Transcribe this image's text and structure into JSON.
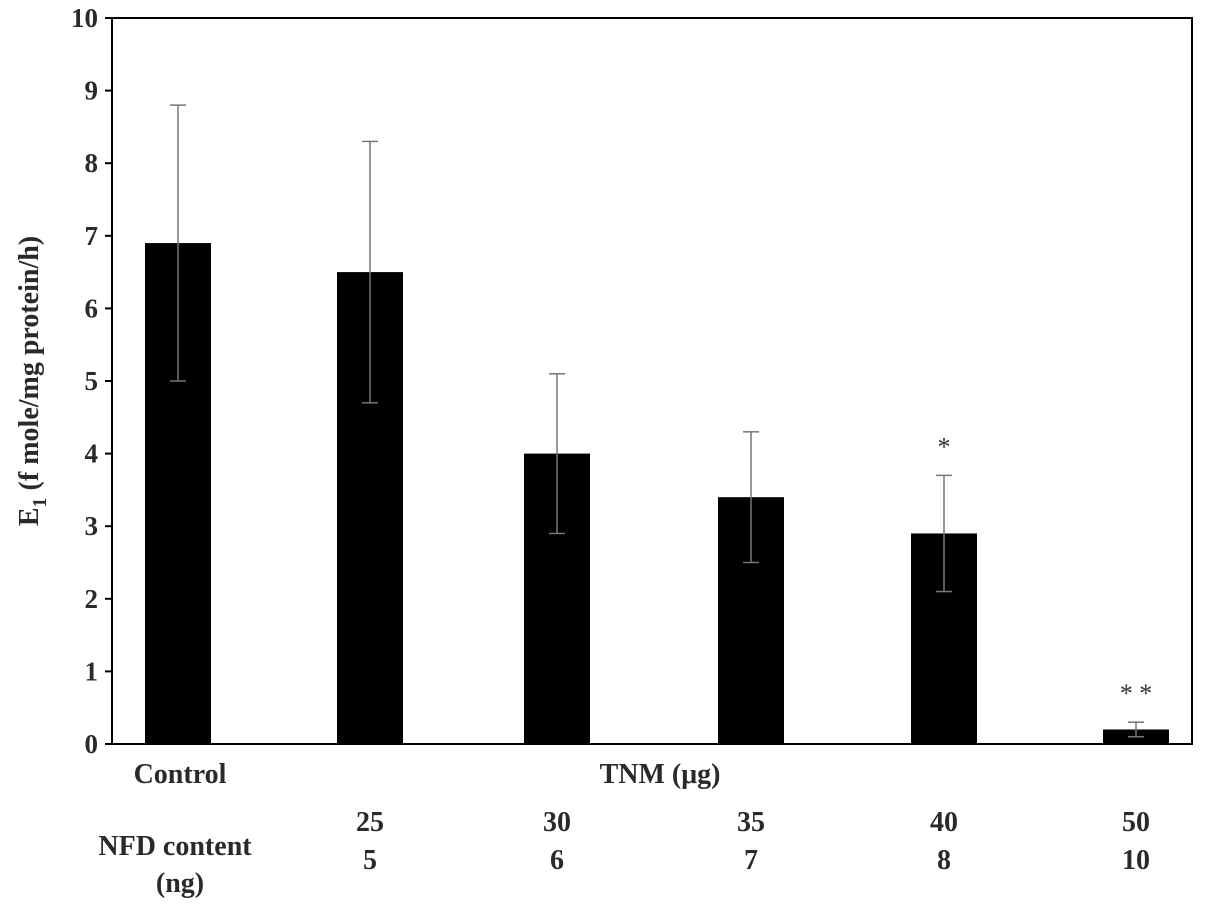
{
  "chart_data": {
    "type": "bar",
    "categories": [
      "Control",
      "25",
      "30",
      "35",
      "40",
      "50"
    ],
    "values": [
      6.9,
      6.5,
      4.0,
      3.4,
      2.9,
      0.2
    ],
    "error_low": [
      5.0,
      4.7,
      2.9,
      2.5,
      2.1,
      0.1
    ],
    "error_high": [
      8.8,
      8.3,
      5.1,
      4.3,
      3.7,
      0.3
    ],
    "significance": [
      "",
      "",
      "",
      "",
      "*",
      "**"
    ],
    "ylabel_main": "E",
    "ylabel_sub": "1",
    "ylabel_rest": " (f mole/mg protein/h)",
    "ylim": [
      0,
      10
    ],
    "yticks": [
      0,
      1,
      2,
      3,
      4,
      5,
      6,
      7,
      8,
      9,
      10
    ],
    "bar_color": "#000000",
    "control_label": "Control",
    "tnm_label": "TNM (μg)",
    "tnm_values": [
      "25",
      "30",
      "35",
      "40",
      "50"
    ],
    "nfd_label_line1": "NFD content",
    "nfd_label_line2": "(ng)",
    "nfd_values": [
      "5",
      "6",
      "7",
      "8",
      "10"
    ],
    "grid": false,
    "legend": "none"
  }
}
